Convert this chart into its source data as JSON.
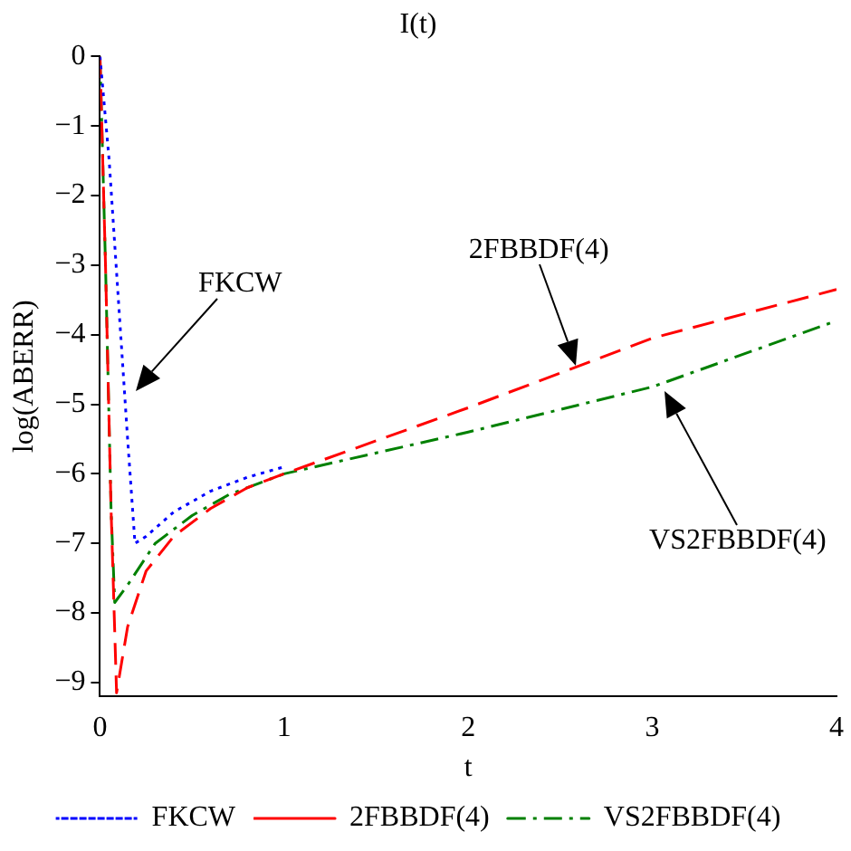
{
  "chart_data": {
    "type": "line",
    "title": "I(t)",
    "xlabel": "t",
    "ylabel": "log(ABERR)",
    "xlim": [
      0,
      4
    ],
    "ylim": [
      -9.2,
      0
    ],
    "xticks": [
      0,
      1,
      2,
      3,
      4
    ],
    "yticks": [
      0,
      -1,
      -2,
      -3,
      -4,
      -5,
      -6,
      -7,
      -8,
      -9
    ],
    "grid": false,
    "legend": "bottom",
    "marker": "none",
    "series": [
      {
        "name": "FKCW",
        "color": "#0000ff",
        "line_style": "dotted",
        "x": [
          0,
          0.05,
          0.1,
          0.15,
          0.19,
          0.25,
          0.4,
          0.6,
          0.8,
          1.0
        ],
        "values": [
          0,
          -1.5,
          -3.5,
          -5.5,
          -7.0,
          -6.9,
          -6.55,
          -6.25,
          -6.05,
          -5.9
        ]
      },
      {
        "name": "2FBBDF(4)",
        "color": "#ff0000",
        "line_style": "dashed",
        "x": [
          0,
          0.03,
          0.06,
          0.09,
          0.15,
          0.25,
          0.4,
          0.6,
          0.8,
          1.0,
          2,
          3,
          4
        ],
        "values": [
          0,
          -3,
          -6.5,
          -9.15,
          -8.2,
          -7.4,
          -6.9,
          -6.5,
          -6.2,
          -6.0,
          -5.05,
          -4.05,
          -3.35
        ]
      },
      {
        "name": "VS2FBBDF(4)",
        "color": "#008000",
        "line_style": "dashdot",
        "x": [
          0,
          0.03,
          0.06,
          0.08,
          0.15,
          0.3,
          0.5,
          0.7,
          1.0,
          2,
          3,
          4
        ],
        "values": [
          0,
          -3,
          -6.5,
          -7.85,
          -7.6,
          -7.0,
          -6.6,
          -6.3,
          -6.0,
          -5.4,
          -4.75,
          -3.8
        ]
      }
    ],
    "annotations": [
      "FKCW",
      "2FBBDF(4)",
      "VS2FBBDF(4)"
    ]
  }
}
